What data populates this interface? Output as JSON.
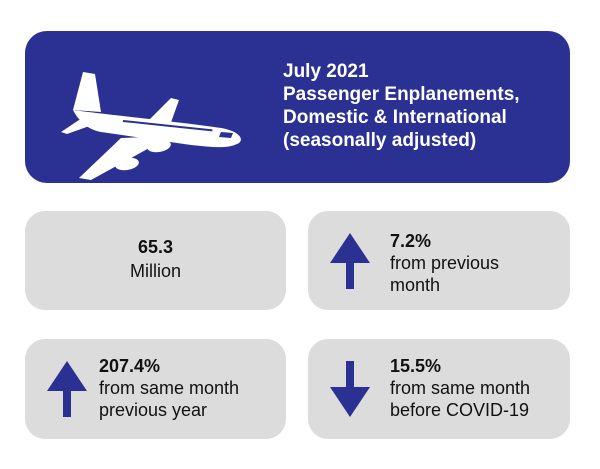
{
  "header": {
    "line1": "July 2021",
    "line2": "Passenger Enplanements,",
    "line3": "Domestic & International",
    "line4": "(seasonally adjusted)",
    "icon": "airplane-icon",
    "bg_color": "#2b3192"
  },
  "cards": {
    "total": {
      "value": "65.3",
      "unit": "Million"
    },
    "prev_month": {
      "value": "7.2%",
      "line1": "from previous",
      "line2": "month",
      "direction": "up"
    },
    "prev_year": {
      "value": "207.4%",
      "line1": "from same month",
      "line2": "previous year",
      "direction": "up"
    },
    "pre_covid": {
      "value": "15.5%",
      "line1": "from same month",
      "line2": "before COVID-19",
      "direction": "down"
    }
  },
  "colors": {
    "card_bg": "#dcdcdd",
    "arrow": "#2b3192"
  }
}
